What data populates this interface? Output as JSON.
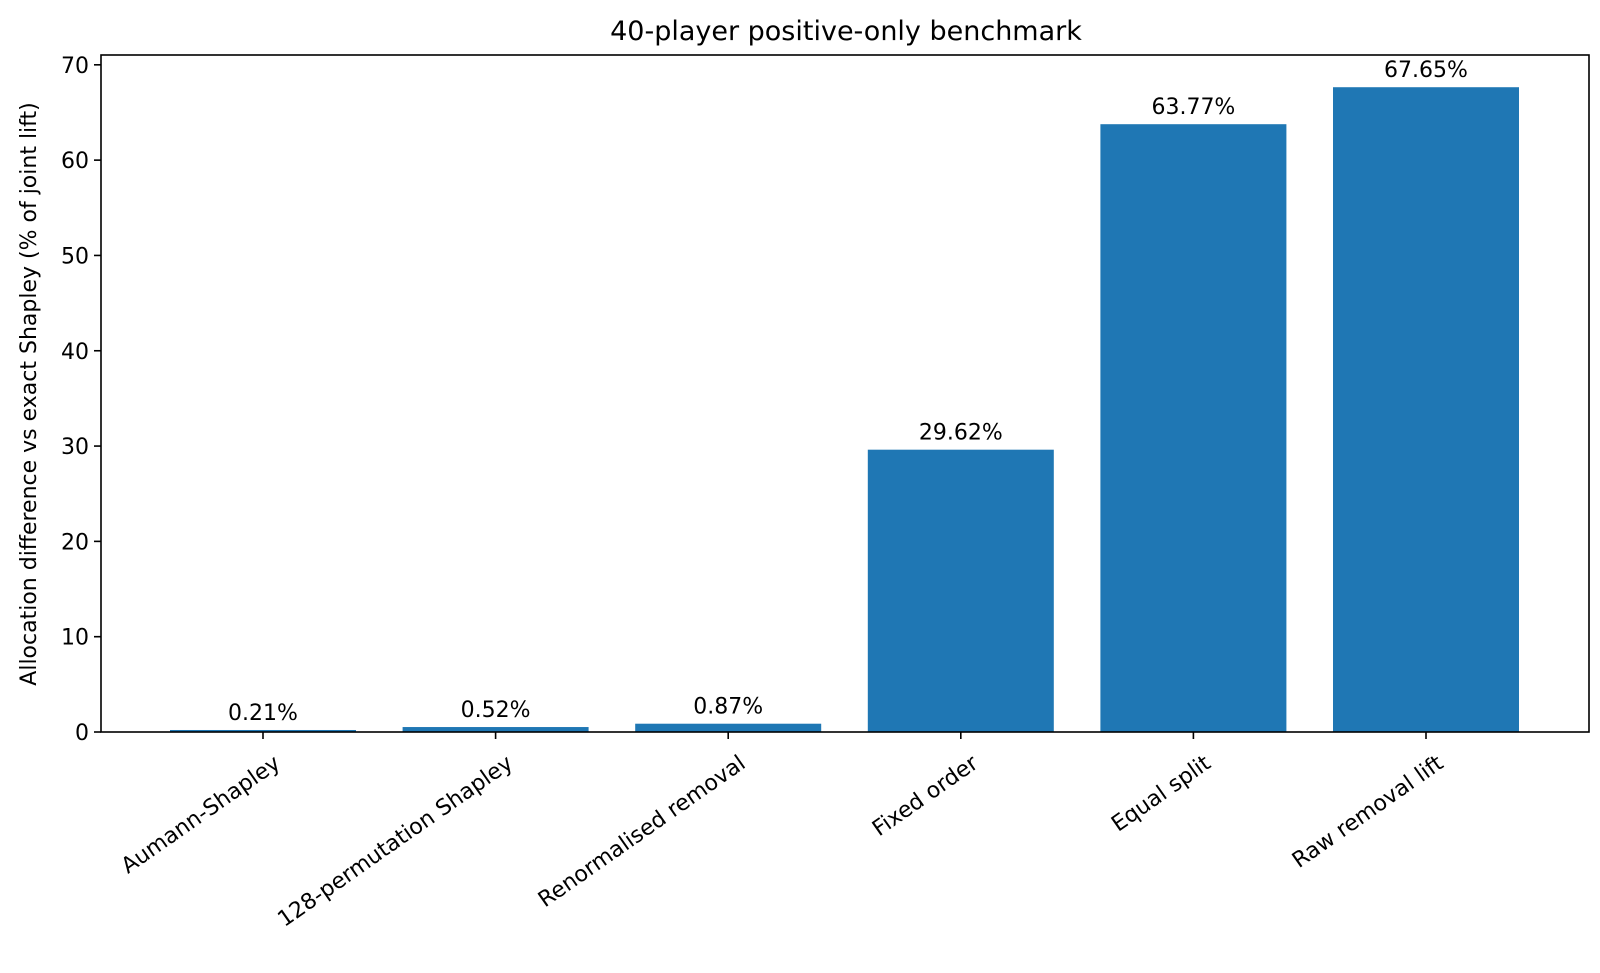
{
  "chart_data": {
    "type": "bar",
    "title": "40-player positive-only benchmark",
    "xlabel": "",
    "ylabel": "Allocation difference vs exact Shapley (% of joint lift)",
    "categories": [
      "Aumann-Shapley",
      "128-permutation Shapley",
      "Renormalised removal",
      "Fixed order",
      "Equal split",
      "Raw removal lift"
    ],
    "values": [
      0.21,
      0.52,
      0.87,
      29.62,
      63.77,
      67.65
    ],
    "value_labels": [
      "0.21%",
      "0.52%",
      "0.87%",
      "29.62%",
      "63.77%",
      "67.65%"
    ],
    "yticks": [
      0,
      10,
      20,
      30,
      40,
      50,
      60,
      70
    ],
    "ytick_labels": [
      "0",
      "10",
      "20",
      "30",
      "40",
      "50",
      "60",
      "70"
    ],
    "ylim": [
      0,
      71.03
    ],
    "grid": false,
    "legend": "none",
    "colors": {
      "bar": "#1f77b4",
      "axes": "#000000",
      "background": "#ffffff"
    }
  }
}
